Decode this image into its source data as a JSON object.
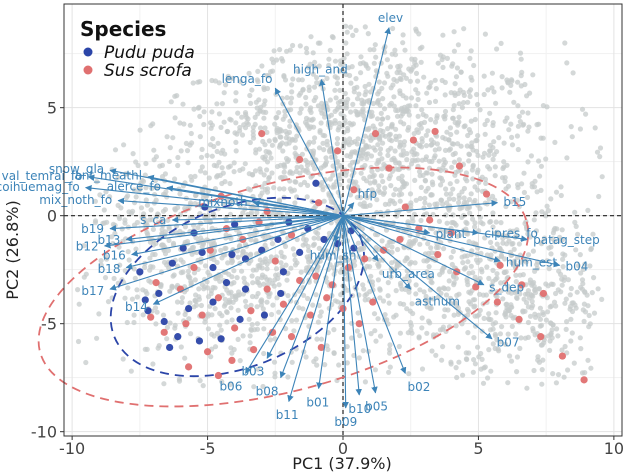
{
  "chart_data": {
    "type": "scatter",
    "subtype": "pca-biplot",
    "xlabel": "PC1 (37.9%)",
    "ylabel": "PC2 (26.8%)",
    "xlim": [
      -10.3,
      10.3
    ],
    "ylim": [
      -10.2,
      9.8
    ],
    "x_ticks": [
      -10,
      -5,
      0,
      5,
      10
    ],
    "y_ticks": [
      -10,
      -5,
      0,
      5
    ],
    "grid": true,
    "legend": {
      "title": "Species",
      "position": "top-left",
      "entries": [
        {
          "name": "Pudu puda",
          "color": "#2b45a8"
        },
        {
          "name": "Sus scrofa",
          "color": "#e07070"
        }
      ]
    },
    "background_points_color": "#c6cbcb",
    "vector_color": "#3d84b8",
    "series": [
      {
        "name": "Pudu puda",
        "color": "#2b45a8",
        "ellipse": {
          "cx": -3.9,
          "cy": -3.3,
          "rx": 4.9,
          "ry": 3.7,
          "angle": 22
        },
        "points": [
          [
            -7.2,
            -4.4
          ],
          [
            -6.8,
            -3.6
          ],
          [
            -6.3,
            -2.2
          ],
          [
            -5.9,
            -1.5
          ],
          [
            -5.2,
            -1.7
          ],
          [
            -4.8,
            -2.4
          ],
          [
            -4.3,
            -3.1
          ],
          [
            -3.6,
            -2.0
          ],
          [
            -3.0,
            -1.6
          ],
          [
            -2.4,
            -1.1
          ],
          [
            -2.0,
            -0.3
          ],
          [
            -1.3,
            -0.6
          ],
          [
            -0.7,
            -1.1
          ],
          [
            -0.2,
            -1.3
          ],
          [
            0.4,
            -1.5
          ],
          [
            -1.0,
            1.5
          ],
          [
            -4.0,
            -0.4
          ],
          [
            -5.5,
            -0.8
          ],
          [
            -7.5,
            -2.6
          ],
          [
            -7.3,
            -3.9
          ],
          [
            -6.1,
            -5.6
          ],
          [
            -5.3,
            -5.8
          ],
          [
            -4.5,
            -5.7
          ],
          [
            -3.6,
            -3.4
          ],
          [
            -2.3,
            -3.6
          ],
          [
            -2.9,
            -4.6
          ],
          [
            -3.8,
            -4.8
          ],
          [
            -4.8,
            -4.0
          ],
          [
            -5.7,
            -4.3
          ],
          [
            -6.4,
            -6.1
          ],
          [
            -2.2,
            -2.6
          ],
          [
            -1.6,
            -1.7
          ],
          [
            0.3,
            -0.7
          ],
          [
            -4.1,
            -1.8
          ],
          [
            -5.1,
            0.4
          ],
          [
            -6.6,
            -4.9
          ]
        ]
      },
      {
        "name": "Sus scrofa",
        "color": "#e07070",
        "ellipse": {
          "cx": -2.2,
          "cy": -3.3,
          "rx": 9.3,
          "ry": 4.8,
          "angle": 15
        },
        "points": [
          [
            -5.8,
            -5.0
          ],
          [
            -5.2,
            -4.6
          ],
          [
            -4.6,
            -3.8
          ],
          [
            -4.0,
            -5.2
          ],
          [
            -3.4,
            -4.4
          ],
          [
            -2.8,
            -3.4
          ],
          [
            -2.2,
            -4.1
          ],
          [
            -1.6,
            -3.0
          ],
          [
            -1.0,
            -2.8
          ],
          [
            -0.4,
            -3.2
          ],
          [
            0.2,
            -2.4
          ],
          [
            0.8,
            -2.0
          ],
          [
            1.5,
            -1.6
          ],
          [
            2.1,
            -1.1
          ],
          [
            2.8,
            -0.6
          ],
          [
            3.5,
            -1.8
          ],
          [
            4.2,
            -2.6
          ],
          [
            4.9,
            -3.3
          ],
          [
            5.7,
            -4.0
          ],
          [
            6.5,
            -4.8
          ],
          [
            7.3,
            -5.6
          ],
          [
            8.1,
            -6.5
          ],
          [
            8.9,
            -7.6
          ],
          [
            -6.6,
            -5.4
          ],
          [
            -6.0,
            -3.4
          ],
          [
            -5.5,
            -2.4
          ],
          [
            -4.9,
            -1.6
          ],
          [
            -4.3,
            -0.6
          ],
          [
            -3.7,
            -1.1
          ],
          [
            -3.1,
            -0.3
          ],
          [
            -2.5,
            -2.1
          ],
          [
            -1.9,
            -0.9
          ],
          [
            -1.2,
            -4.6
          ],
          [
            -0.6,
            -3.8
          ],
          [
            0.0,
            -4.3
          ],
          [
            0.6,
            -5.0
          ],
          [
            -2.6,
            -5.4
          ],
          [
            -3.3,
            -6.2
          ],
          [
            -4.1,
            -6.7
          ],
          [
            -5.0,
            -6.3
          ],
          [
            -5.7,
            -7.0
          ],
          [
            -3.0,
            3.8
          ],
          [
            -1.6,
            2.6
          ],
          [
            -0.2,
            3.0
          ],
          [
            1.2,
            3.8
          ],
          [
            2.6,
            3.5
          ],
          [
            3.4,
            3.9
          ],
          [
            4.3,
            2.3
          ],
          [
            5.3,
            1.0
          ],
          [
            1.7,
            2.2
          ],
          [
            0.4,
            1.2
          ],
          [
            -0.9,
            0.6
          ],
          [
            -2.8,
            0.2
          ],
          [
            -4.5,
            0.9
          ],
          [
            2.3,
            0.4
          ],
          [
            3.2,
            -0.2
          ],
          [
            4.0,
            -0.8
          ],
          [
            5.8,
            -2.3
          ],
          [
            6.6,
            -3.2
          ],
          [
            7.4,
            -3.6
          ],
          [
            1.1,
            -4.0
          ],
          [
            -1.9,
            -5.6
          ],
          [
            -0.8,
            -6.1
          ],
          [
            -6.9,
            -3.1
          ],
          [
            -7.1,
            -4.7
          ],
          [
            -4.6,
            -7.4
          ]
        ]
      }
    ],
    "vectors": [
      {
        "label": "elev",
        "x": 1.7,
        "y": 8.7
      },
      {
        "label": "high_and",
        "x": -0.8,
        "y": 6.3
      },
      {
        "label": "lenga_fo",
        "x": -2.5,
        "y": 5.9
      },
      {
        "label": "snow_gla",
        "x": -8.6,
        "y": 2.1
      },
      {
        "label": "val_temrai_fo",
        "x": -9.4,
        "y": 1.8
      },
      {
        "label": "ant_meathl",
        "x": -7.2,
        "y": 1.8
      },
      {
        "label": "coihuemag_fo",
        "x": -9.5,
        "y": 1.3
      },
      {
        "label": "alerce_fo",
        "x": -6.5,
        "y": 1.3
      },
      {
        "label": "mix_noth_fo",
        "x": -8.3,
        "y": 0.7
      },
      {
        "label": "mixnoth",
        "x": -3.3,
        "y": 0.6
      },
      {
        "label": "s_ca",
        "x": -6.3,
        "y": -0.2
      },
      {
        "label": "b19",
        "x": -8.6,
        "y": -0.6
      },
      {
        "label": "b13",
        "x": -8.0,
        "y": -1.1
      },
      {
        "label": "b12",
        "x": -8.8,
        "y": -1.4
      },
      {
        "label": "b16",
        "x": -7.8,
        "y": -1.8
      },
      {
        "label": "b18",
        "x": -8.0,
        "y": -2.4
      },
      {
        "label": "b17",
        "x": -8.6,
        "y": -3.4
      },
      {
        "label": "b14",
        "x": -7.0,
        "y": -4.1
      },
      {
        "label": "hfp",
        "x": 0.4,
        "y": 0.6
      },
      {
        "label": "hum_sh",
        "x": -0.3,
        "y": -1.2
      },
      {
        "label": "b15",
        "x": 5.7,
        "y": 0.6
      },
      {
        "label": "plant",
        "x": 3.2,
        "y": -0.8
      },
      {
        "label": "cipres_fo",
        "x": 5.0,
        "y": -0.8
      },
      {
        "label": "patag_step",
        "x": 6.8,
        "y": -1.1
      },
      {
        "label": "hum_est",
        "x": 5.8,
        "y": -2.1
      },
      {
        "label": "b04",
        "x": 8.0,
        "y": -2.3
      },
      {
        "label": "urb_area",
        "x": 1.3,
        "y": -2.1
      },
      {
        "label": "asthum",
        "x": 2.5,
        "y": -3.4
      },
      {
        "label": "s_dep",
        "x": 5.2,
        "y": -3.2
      },
      {
        "label": "b07",
        "x": 5.5,
        "y": -5.7
      },
      {
        "label": "b02",
        "x": 2.3,
        "y": -7.3
      },
      {
        "label": "b05",
        "x": 1.2,
        "y": -8.2
      },
      {
        "label": "b10",
        "x": 0.6,
        "y": -8.3
      },
      {
        "label": "b09",
        "x": 0.1,
        "y": -8.9
      },
      {
        "label": "b01",
        "x": -0.9,
        "y": -8.0
      },
      {
        "label": "b11",
        "x": -2.0,
        "y": -8.6
      },
      {
        "label": "b08",
        "x": -2.3,
        "y": -7.5
      },
      {
        "label": "b03",
        "x": -2.8,
        "y": -6.6
      },
      {
        "label": "b06",
        "x": -3.6,
        "y": -7.3
      }
    ]
  }
}
